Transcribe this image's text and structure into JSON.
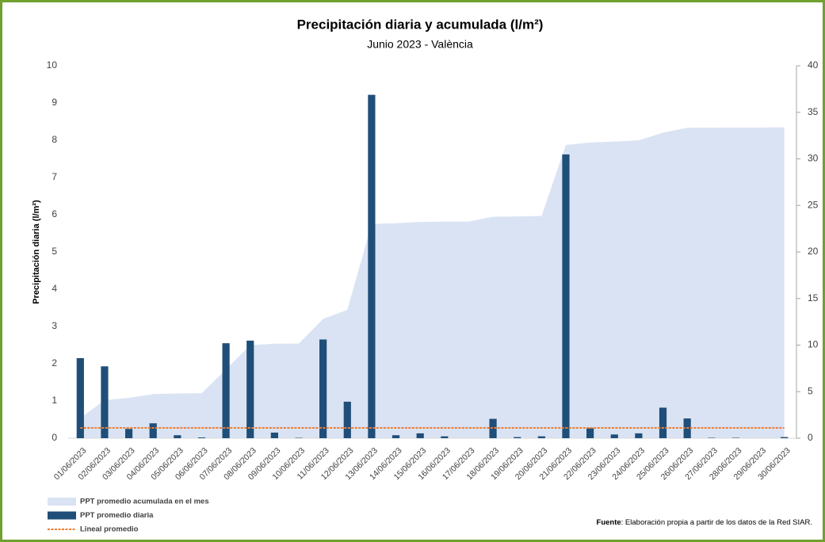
{
  "chart_data": {
    "type": "combo",
    "title": "Precipitación diaria y acumulada (l/m²)",
    "subtitle": "Junio 2023 - València",
    "ylabel": "Precipitación diaria (l/m²)",
    "source": [
      "Fuente",
      ": Elaboración propia a partir de los datos de la Red SIAR."
    ],
    "categories": [
      "01/06/2023",
      "02/06/2023",
      "03/06/2023",
      "04/06/2023",
      "05/06/2023",
      "06/06/2023",
      "07/06/2023",
      "08/06/2023",
      "09/06/2023",
      "10/06/2023",
      "11/06/2023",
      "12/06/2023",
      "13/06/2023",
      "14/06/2023",
      "15/06/2023",
      "16/06/2023",
      "17/06/2023",
      "18/06/2023",
      "19/06/2023",
      "20/06/2023",
      "21/06/2023",
      "22/06/2023",
      "23/06/2023",
      "24/06/2023",
      "25/06/2023",
      "26/06/2023",
      "27/06/2023",
      "28/06/2023",
      "29/06/2023",
      "30/06/2023"
    ],
    "series": [
      {
        "name": "PPT promedio acumulada en el mes",
        "type": "area",
        "axis": "y2",
        "color": "#dae3f3",
        "values": [
          2.15,
          4.08,
          4.33,
          4.73,
          4.81,
          4.83,
          7.38,
          10.0,
          10.15,
          10.16,
          12.81,
          13.79,
          23.01,
          23.09,
          23.22,
          23.27,
          23.27,
          23.79,
          23.82,
          23.87,
          31.49,
          31.76,
          31.86,
          31.99,
          32.81,
          33.34,
          33.35,
          33.36,
          33.36,
          33.39
        ]
      },
      {
        "name": "PPT promedio diaria",
        "type": "bar",
        "color": "#1f4e79",
        "values": [
          2.15,
          1.93,
          0.25,
          0.4,
          0.08,
          0.02,
          2.55,
          2.62,
          0.15,
          0.01,
          2.65,
          0.98,
          9.22,
          0.08,
          0.13,
          0.05,
          0,
          0.52,
          0.03,
          0.05,
          7.62,
          0.27,
          0.1,
          0.13,
          0.82,
          0.53,
          0.01,
          0.01,
          0,
          0.03
        ]
      },
      {
        "name": "Lineal promedio",
        "type": "line",
        "axis": "y2",
        "color": "#ed7d31",
        "values": [
          1.11,
          1.11,
          1.11,
          1.11,
          1.11,
          1.11,
          1.11,
          1.11,
          1.11,
          1.11,
          1.11,
          1.11,
          1.11,
          1.11,
          1.11,
          1.11,
          1.11,
          1.11,
          1.11,
          1.11,
          1.11,
          1.11,
          1.11,
          1.11,
          1.11,
          1.11,
          1.11,
          1.11,
          1.11,
          1.11
        ]
      }
    ],
    "ylim": [
      0,
      10
    ],
    "yticks": [
      0,
      1,
      2,
      3,
      4,
      5,
      6,
      7,
      8,
      9,
      10
    ],
    "y2lim": [
      0,
      40
    ],
    "y2ticks": [
      0,
      5,
      10,
      15,
      20,
      25,
      30,
      35,
      40
    ],
    "grid": false
  }
}
